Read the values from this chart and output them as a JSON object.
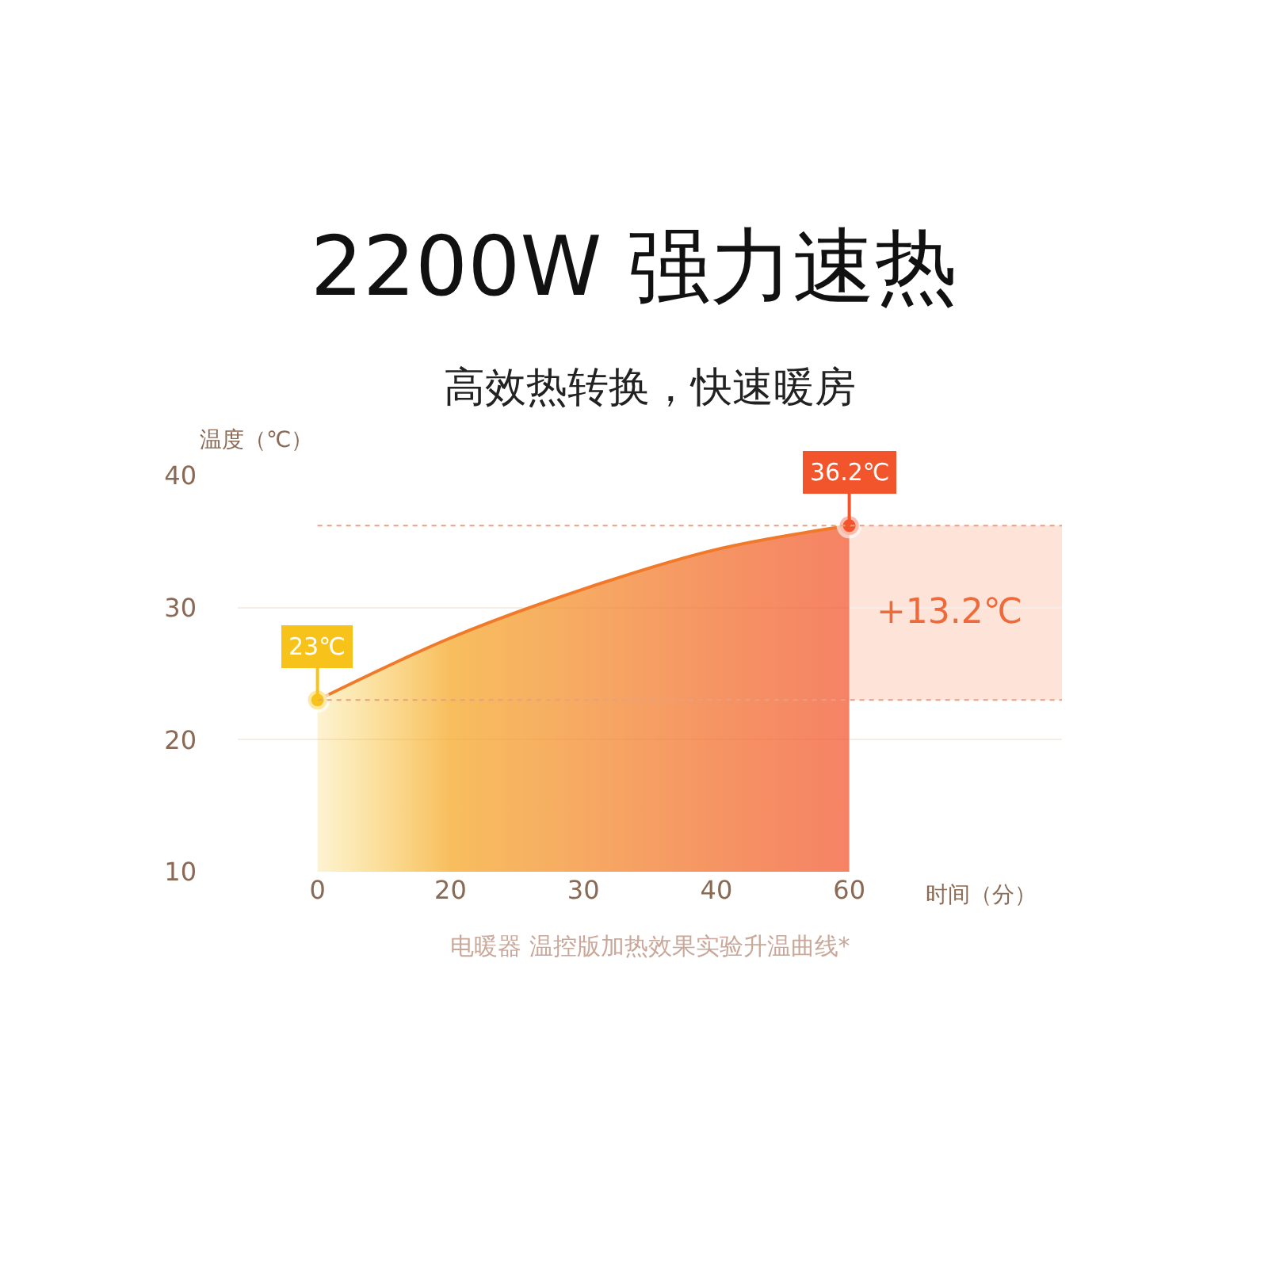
{
  "chart_data": {
    "type": "area",
    "title": "2200W 强力速热",
    "subtitle": "高效热转换，快速暖房",
    "ylabel": "温度（℃）",
    "xlabel": "时间（分）",
    "categories": [
      "0",
      "20",
      "30",
      "40",
      "60"
    ],
    "series": [
      {
        "color": "#f07a2a",
        "colors": [
          "#f7c31a",
          "#f5a623",
          "#f38a2a",
          "#f26d2b",
          "#f2552c"
        ],
        "values": [
          23,
          27.7,
          31.4,
          34.4,
          36.2
        ],
        "value_labels": [
          "23℃",
          null,
          null,
          null,
          "36.2℃"
        ]
      }
    ],
    "ylim": [
      10,
      40
    ],
    "yticks": [
      10,
      20,
      30,
      40
    ],
    "grid": "y",
    "ref_lines": [
      {
        "axis": "y",
        "value": 23,
        "line_style": "dotted",
        "color": "#e8a080"
      },
      {
        "axis": "y",
        "value": 36.2,
        "line_style": "dotted",
        "color": "#e8a080"
      }
    ],
    "bands": [
      {
        "axis": "y",
        "from": 23,
        "to": 36.2,
        "label": "+13.2℃",
        "color": "#fde3d8"
      }
    ],
    "annotations": [
      "电暖器 温控版加热效果实验升温曲线*"
    ]
  }
}
